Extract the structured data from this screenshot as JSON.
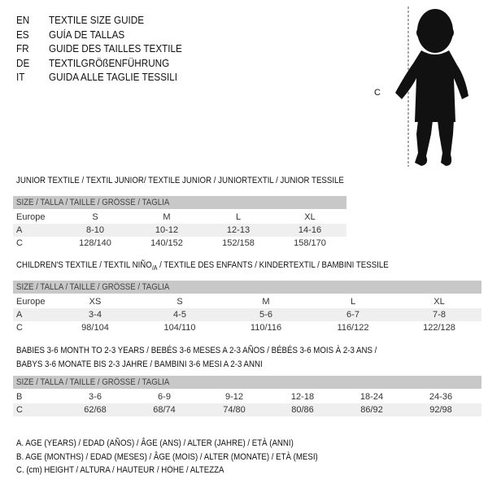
{
  "languages": [
    {
      "code": "EN",
      "title": "TEXTILE SIZE GUIDE"
    },
    {
      "code": "ES",
      "title": "GUÍA DE TALLAS"
    },
    {
      "code": "FR",
      "title": "GUIDE DES TAILLES TEXTILE"
    },
    {
      "code": "DE",
      "title": "TEXTILGRÖßENFÜHRUNG"
    },
    {
      "code": "IT",
      "title": "GUIDA ALLE TAGLIE TESSILI"
    }
  ],
  "figure": {
    "label": "C",
    "icon": "baby-silhouette"
  },
  "size_header": "SIZE / TALLA / TAILLE / GRÖSSE / TAGLIA",
  "junior": {
    "title": "JUNIOR TEXTILE / TEXTIL JUNIOR/ TEXTILE JUNIOR / JUNIORTEXTIL / JUNIOR TESSILE",
    "rows": [
      {
        "label": "Europe",
        "values": [
          "S",
          "M",
          "L",
          "XL"
        ]
      },
      {
        "label": "A",
        "values": [
          "8-10",
          "10-12",
          "12-13",
          "14-16"
        ]
      },
      {
        "label": "C",
        "values": [
          "128/140",
          "140/152",
          "152/158",
          "158/170"
        ]
      }
    ]
  },
  "children": {
    "title_a": "CHILDREN'S TEXTILE / TEXTIL NIÑO",
    "title_sub": "/A",
    "title_b": " / TEXTILE DES ENFANTS / KINDERTEXTIL / BAMBINI TESSILE",
    "rows": [
      {
        "label": "Europe",
        "values": [
          "XS",
          "S",
          "M",
          "L",
          "XL"
        ]
      },
      {
        "label": "A",
        "values": [
          "3-4",
          "4-5",
          "5-6",
          "6-7",
          "7-8"
        ]
      },
      {
        "label": "C",
        "values": [
          "98/104",
          "104/110",
          "110/116",
          "116/122",
          "122/128"
        ]
      }
    ]
  },
  "babies": {
    "title_line1": "BABIES 3-6 MONTH TO 2-3 YEARS / BEBÉS 3-6 MESES A 2-3 AÑOS / BÉBÉS 3-6 MOIS À 2-3 ANS /",
    "title_line2": "BABYS 3-6 MONATE BIS 2-3 JAHRE / BAMBINI 3-6 MESI A 2-3 ANNI",
    "rows": [
      {
        "label": "B",
        "values": [
          "3-6",
          "6-9",
          "9-12",
          "12-18",
          "18-24",
          "24-36"
        ]
      },
      {
        "label": "C",
        "values": [
          "62/68",
          "68/74",
          "74/80",
          "80/86",
          "86/92",
          "92/98"
        ]
      }
    ]
  },
  "legend": [
    "A. AGE (YEARS) / EDAD (AÑOS) / ÂGE (ANS) / ALTER (JAHRE) / ETÀ (ANNI)",
    "B. AGE (MONTHS) / EDAD (MESES) / ÂGE (MOIS) / ALTER (MONATE) / ETÀ (MESI)",
    "C. (cm) HEIGHT / ALTURA / HAUTEUR / HÖHE / ALTEZZA"
  ]
}
